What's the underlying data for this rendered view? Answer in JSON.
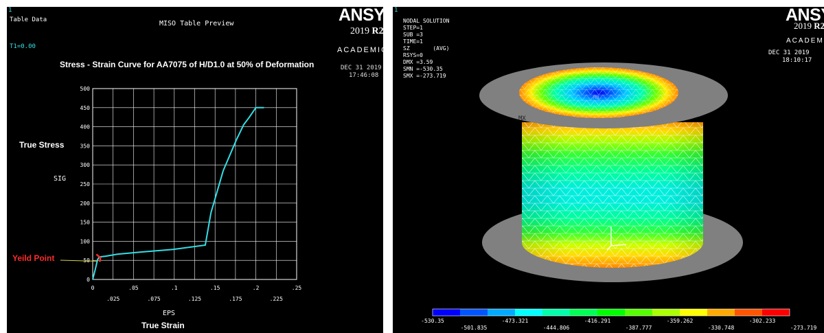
{
  "left": {
    "corner_num": "1",
    "header_label": "Table Data",
    "preview_title": "MISO Table Preview",
    "temp_label": "T1=0.00",
    "brand": {
      "name": "ANSYS",
      "version_prefix": "2019 ",
      "version_suffix": "R2",
      "edition": "ACADEMIC"
    },
    "date": "DEC 31 2019",
    "time": "17:46:08",
    "yield_label": "Yeild Point"
  },
  "chart_data": {
    "type": "line",
    "title": "Stress - Strain Curve for AA7075 of H/D1.0 at 50% of Deformation",
    "xlabel": "EPS",
    "xlabel_outer": "True Strain",
    "ylabel": "SIG",
    "ylabel_outer": "True Stress",
    "xlim": [
      0,
      0.25
    ],
    "ylim": [
      0,
      500
    ],
    "grid": true,
    "x_ticks_top": [
      "0",
      ".05",
      ".1",
      ".15",
      ".2",
      ".25"
    ],
    "x_ticks_bottom": [
      ".025",
      ".075",
      ".125",
      ".175",
      ".225"
    ],
    "y_ticks": [
      "0",
      "50",
      "100",
      "150",
      "200",
      "250",
      "300",
      "350",
      "400",
      "450",
      "500"
    ],
    "series": [
      {
        "color": "#32e0e6",
        "x": [
          0,
          0.003,
          0.006,
          0.008,
          0.016,
          0.03,
          0.06,
          0.1,
          0.138,
          0.145,
          0.16,
          0.176,
          0.185,
          0.192,
          0.2,
          0.21
        ],
        "y": [
          0,
          25,
          52,
          59,
          61,
          66,
          72,
          79,
          90,
          175,
          285,
          365,
          405,
          425,
          450,
          450
        ]
      }
    ],
    "yield_point": {
      "x": 0.007,
      "y": 55
    }
  },
  "right": {
    "corner_num": "1",
    "info_lines": [
      "NODAL SOLUTION",
      "STEP=1",
      "SUB =3",
      "TIME=1",
      "SZ       (AVG)",
      "RSYS=0",
      "DMX =3.59",
      "SMN =-530.35",
      "SMX =-273.719"
    ],
    "brand": {
      "name": "ANSYS",
      "version_prefix": "2019 ",
      "version_suffix": "R2",
      "edition": "ACADEMIC"
    },
    "date": "DEC 31 2019",
    "time": "18:10:17",
    "mx_label": "MX",
    "mn_label": "MN",
    "legend_colors": [
      "#0000ff",
      "#0055ff",
      "#00aaff",
      "#00ffff",
      "#00ffaa",
      "#00ff55",
      "#00ff00",
      "#55ff00",
      "#aaff00",
      "#ffff00",
      "#ffaa00",
      "#ff5500",
      "#ff0000"
    ],
    "legend_top_values": [
      "-530.35",
      "-473.321",
      "-416.291",
      "-359.262",
      "-302.233"
    ],
    "legend_bottom_values": [
      "-501.835",
      "-444.806",
      "-387.777",
      "-330.748",
      "-273.719"
    ]
  }
}
